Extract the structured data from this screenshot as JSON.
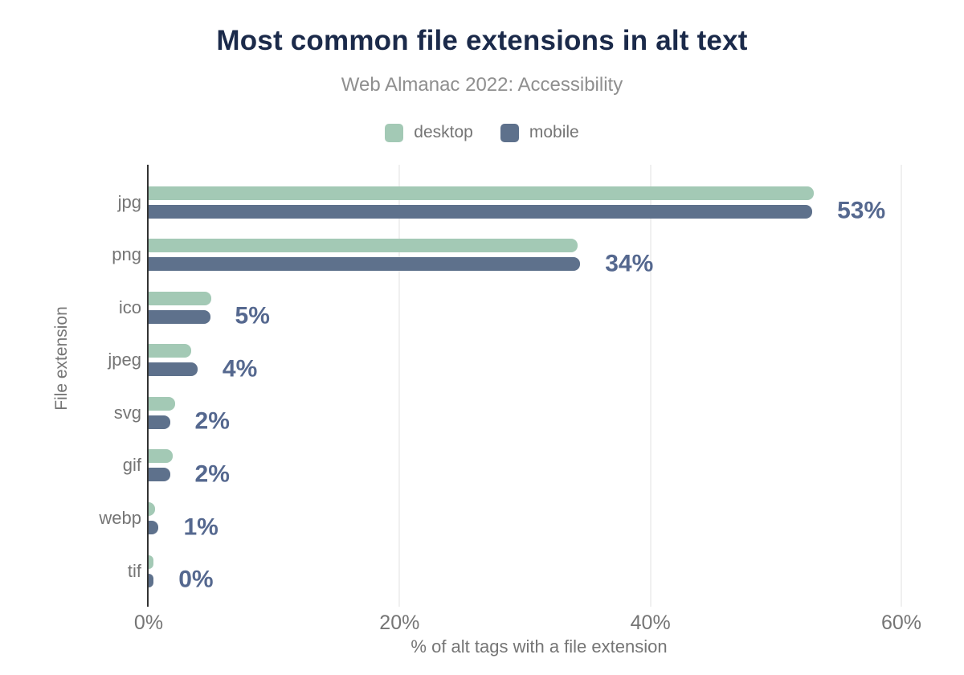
{
  "colors": {
    "title_text": "#1b2a4a",
    "subtitle_text": "#8f8f8f",
    "axis_text": "#757575",
    "value_label_text": "#55688f",
    "desktop": "#a3c9b5",
    "mobile": "#5e718c",
    "gridline": "#f0f0f0",
    "axis_line": "#333333",
    "background": "#ffffff"
  },
  "chart_data": {
    "type": "bar",
    "orientation": "horizontal",
    "title": "Most common file extensions in alt text",
    "subtitle": "Web Almanac 2022: Accessibility",
    "xlabel": "% of alt tags with a file extension",
    "ylabel": "File extension",
    "categories": [
      "jpg",
      "png",
      "ico",
      "jpeg",
      "svg",
      "gif",
      "webp",
      "tif"
    ],
    "series": [
      {
        "name": "desktop",
        "values": [
          53.0,
          34.2,
          5.0,
          3.4,
          2.1,
          1.9,
          0.5,
          0.4
        ]
      },
      {
        "name": "mobile",
        "values": [
          52.9,
          34.4,
          4.9,
          3.9,
          1.7,
          1.7,
          0.8,
          0.4
        ]
      }
    ],
    "value_labels": [
      "53%",
      "34%",
      "5%",
      "4%",
      "2%",
      "2%",
      "1%",
      "0%"
    ],
    "x_ticks": [
      {
        "label": "0%",
        "value": 0
      },
      {
        "label": "20%",
        "value": 20
      },
      {
        "label": "40%",
        "value": 40
      },
      {
        "label": "60%",
        "value": 60
      }
    ],
    "xlim": [
      0,
      60
    ],
    "grid": true,
    "legend_position": "top"
  }
}
